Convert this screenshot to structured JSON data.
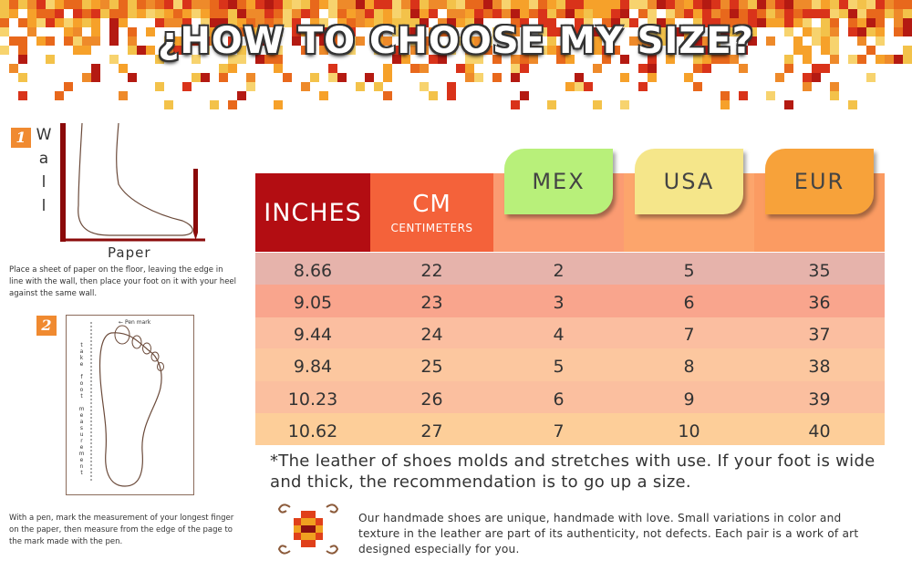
{
  "header": {
    "title": "¿HOW TO CHOOSE MY SIZE?"
  },
  "steps": [
    {
      "number": "1",
      "wall_label": "Wall",
      "paper_label": "Paper",
      "text": "Place a sheet of paper on the floor, leaving the edge in line with the wall, then place your foot on it with your heel against the same wall."
    },
    {
      "number": "2",
      "pen_label": "Pen mark",
      "measure_label": "take foot measurement",
      "text": "With a pen, mark the measurement of your longest finger on the paper, then measure from the edge of the page to the mark made with the pen."
    }
  ],
  "table": {
    "headers": [
      {
        "label": "INCHES"
      },
      {
        "label": "CM",
        "sublabel": "CENTIMETERS"
      },
      {
        "label": "MEX"
      },
      {
        "label": "USA"
      },
      {
        "label": "EUR"
      }
    ],
    "rows": [
      [
        8.66,
        22,
        2,
        5,
        35
      ],
      [
        9.05,
        23,
        3,
        6,
        36
      ],
      [
        9.44,
        24,
        4,
        7,
        37
      ],
      [
        9.84,
        25,
        5,
        8,
        38
      ],
      [
        10.23,
        26,
        6,
        9,
        39
      ],
      [
        10.62,
        27,
        7,
        10,
        40
      ]
    ]
  },
  "footnote": "*The leather of shoes molds and stretches with use. If your foot is wide and thick, the recommendation is to go up a size.",
  "note": "Our handmade shoes are unique, handmade with love. Small variations in color and texture in the leather are part of its authenticity, not defects. Each pair is a work of art designed especially for you."
}
